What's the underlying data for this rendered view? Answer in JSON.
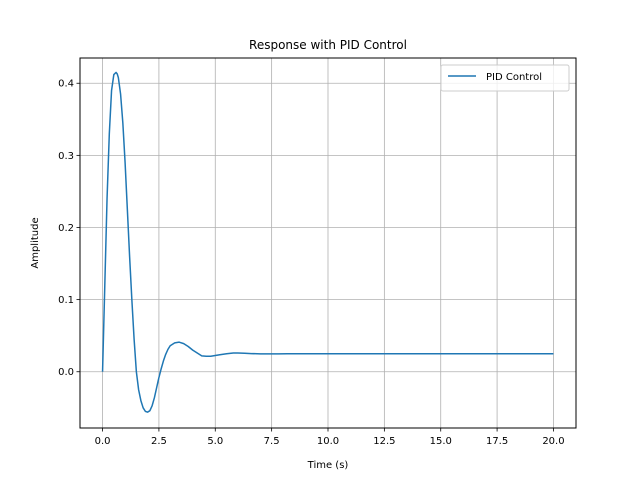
{
  "chart_data": {
    "type": "line",
    "title": "Response with PID Control",
    "xlabel": "Time (s)",
    "ylabel": "Amplitude",
    "xlim": [
      -1.0,
      21.0
    ],
    "ylim": [
      -0.078,
      0.435
    ],
    "xticks": [
      0.0,
      2.5,
      5.0,
      7.5,
      10.0,
      12.5,
      15.0,
      17.5,
      20.0
    ],
    "xtick_labels": [
      "0.0",
      "2.5",
      "5.0",
      "7.5",
      "10.0",
      "12.5",
      "15.0",
      "17.5",
      "20.0"
    ],
    "yticks": [
      0.0,
      0.1,
      0.2,
      0.3,
      0.4
    ],
    "ytick_labels": [
      "0.0",
      "0.1",
      "0.2",
      "0.3",
      "0.4"
    ],
    "grid": true,
    "legend": "top-right",
    "series": [
      {
        "name": "PID Control",
        "color": "#1f77b4",
        "x": [
          0.0,
          0.1,
          0.2,
          0.3,
          0.4,
          0.5,
          0.6,
          0.65,
          0.7,
          0.8,
          0.9,
          1.0,
          1.1,
          1.2,
          1.3,
          1.4,
          1.5,
          1.6,
          1.7,
          1.8,
          1.9,
          2.0,
          2.1,
          2.2,
          2.3,
          2.4,
          2.5,
          2.6,
          2.7,
          2.8,
          2.9,
          3.0,
          3.2,
          3.4,
          3.6,
          3.8,
          4.0,
          4.2,
          4.4,
          4.6,
          4.8,
          5.0,
          5.2,
          5.5,
          5.8,
          6.0,
          6.3,
          6.6,
          7.0,
          7.4,
          7.8,
          8.2,
          8.6,
          9.0,
          10.0,
          11.0,
          12.0,
          13.0,
          14.0,
          15.0,
          16.0,
          17.0,
          18.0,
          19.0,
          20.0
        ],
        "y": [
          0.0,
          0.12,
          0.24,
          0.33,
          0.39,
          0.412,
          0.415,
          0.413,
          0.408,
          0.385,
          0.345,
          0.29,
          0.225,
          0.16,
          0.1,
          0.045,
          0.0,
          -0.025,
          -0.04,
          -0.05,
          -0.055,
          -0.056,
          -0.054,
          -0.047,
          -0.036,
          -0.022,
          -0.008,
          0.004,
          0.015,
          0.024,
          0.031,
          0.036,
          0.04,
          0.041,
          0.039,
          0.035,
          0.03,
          0.026,
          0.022,
          0.0215,
          0.0215,
          0.0225,
          0.0235,
          0.025,
          0.026,
          0.026,
          0.0257,
          0.0252,
          0.0248,
          0.0247,
          0.0248,
          0.025,
          0.025,
          0.025,
          0.025,
          0.025,
          0.025,
          0.025,
          0.025,
          0.025,
          0.025,
          0.025,
          0.025,
          0.025,
          0.025
        ]
      }
    ]
  }
}
